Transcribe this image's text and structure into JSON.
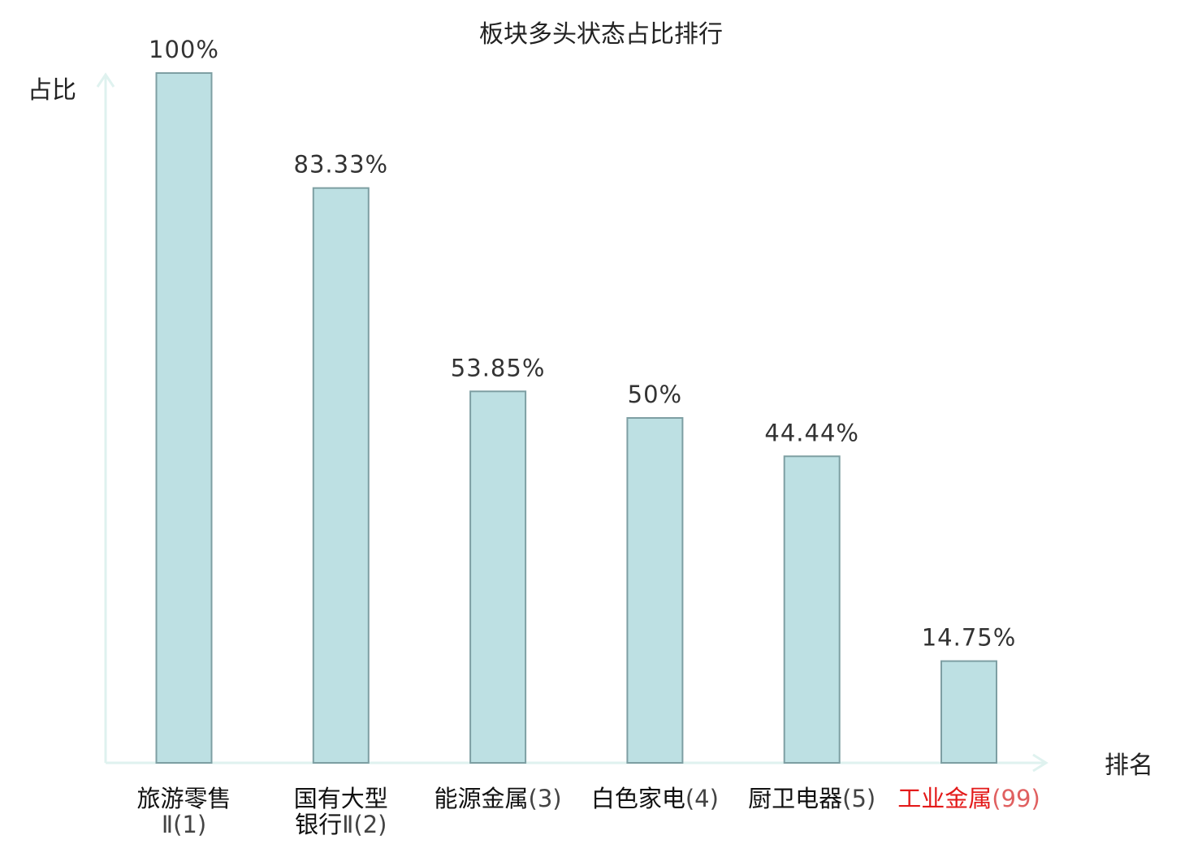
{
  "chart_data": {
    "type": "bar",
    "title": "板块多头状态占比排行",
    "ylabel": "占比",
    "xlabel": "排名",
    "ylim": [
      0,
      100
    ],
    "grid": false,
    "categories": [
      {
        "lines": [
          {
            "name": "旅游零售",
            "rank": ""
          },
          {
            "name": "",
            "rank": "Ⅱ(1)"
          }
        ],
        "highlight": false
      },
      {
        "lines": [
          {
            "name": "国有大型",
            "rank": ""
          },
          {
            "name": "银行",
            "rank": "Ⅱ(2)"
          }
        ],
        "highlight": false
      },
      {
        "lines": [
          {
            "name": "能源金属",
            "rank": "(3)"
          }
        ],
        "highlight": false
      },
      {
        "lines": [
          {
            "name": "白色家电",
            "rank": "(4)"
          }
        ],
        "highlight": false
      },
      {
        "lines": [
          {
            "name": "厨卫电器",
            "rank": "(5)"
          }
        ],
        "highlight": false
      },
      {
        "lines": [
          {
            "name": "工业金属",
            "rank": "(99)"
          }
        ],
        "highlight": true
      }
    ],
    "values": [
      100,
      83.33,
      53.85,
      50,
      44.44,
      14.75
    ],
    "value_labels": [
      "100%",
      "83.33%",
      "53.85%",
      "50%",
      "44.44%",
      "14.75%"
    ],
    "colors": {
      "bar_fill": "#bde0e3",
      "bar_stroke": "#7e9fa3",
      "axis": "#dff2ef",
      "highlight_name": "#e31a1a",
      "highlight_rank": "#e06060"
    }
  }
}
